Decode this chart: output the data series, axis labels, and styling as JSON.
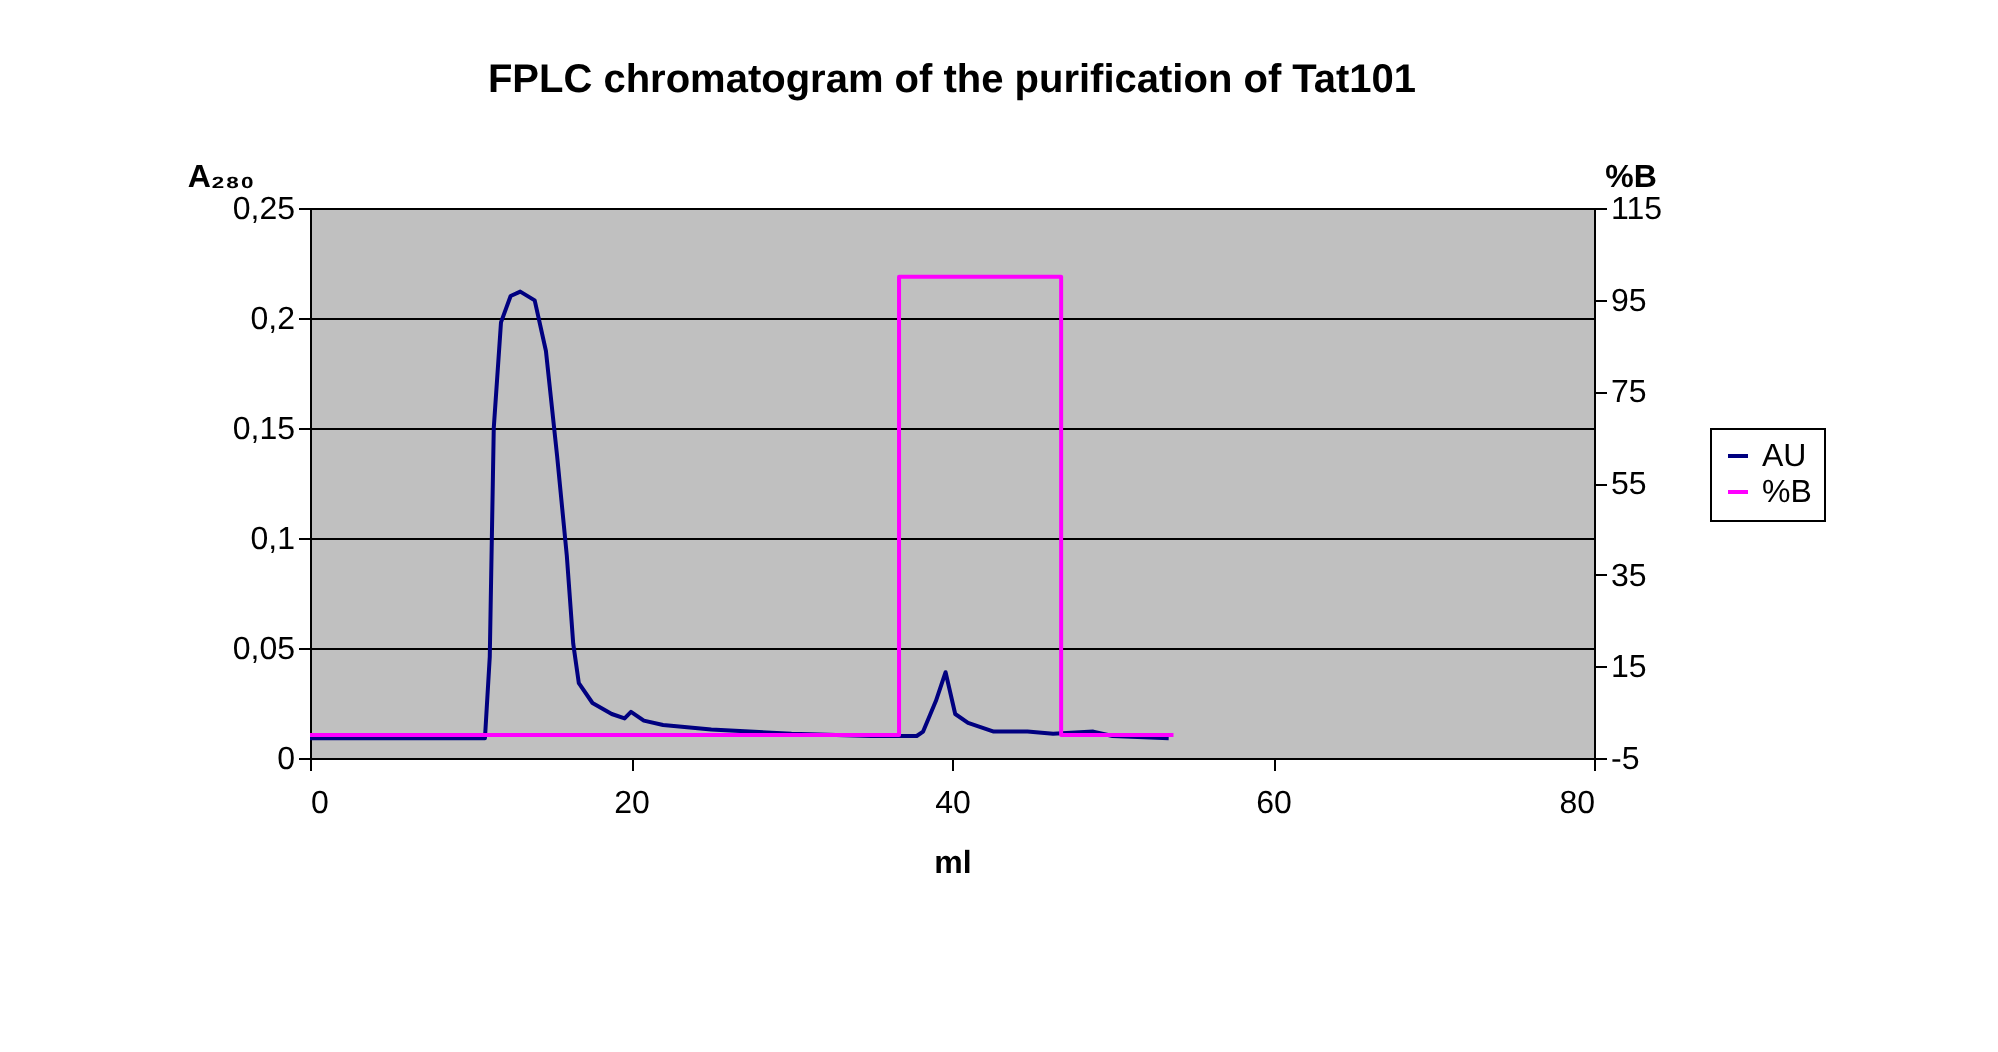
{
  "chart_data": {
    "type": "line",
    "title": "FPLC chromatogram of the purification of Tat101",
    "xlabel": "ml",
    "ylabel": "A₂₈₀",
    "y2label": "%B",
    "xlim": [
      0,
      80
    ],
    "xticks": [
      0,
      20,
      40,
      60,
      80
    ],
    "ylim": [
      0,
      0.25
    ],
    "yticks": [
      0,
      {
        "value": 0.05,
        "label": "0,05"
      },
      {
        "value": 0.1,
        "label": "0,1"
      },
      {
        "value": 0.15,
        "label": "0,15"
      },
      {
        "value": 0.2,
        "label": "0,2"
      },
      {
        "value": 0.25,
        "label": "0,25"
      }
    ],
    "y2lim": [
      -5,
      115
    ],
    "y2ticks": [
      -5,
      15,
      35,
      55,
      75,
      95,
      115
    ],
    "grid": "y",
    "legend": "right",
    "marker": "none",
    "line_style": "solid",
    "series": [
      {
        "name": "AU",
        "color": "#000080",
        "x": [
          0,
          10.9,
          11.2,
          11.45,
          11.9,
          12.5,
          13.1,
          14.0,
          14.7,
          15.4,
          16.0,
          16.4,
          16.75,
          17.6,
          18.8,
          19.6,
          20.0,
          20.8,
          22,
          25,
          30,
          35,
          37.8,
          38.2,
          39.0,
          39.6,
          40.2,
          41.0,
          42.6,
          44.7,
          46.3,
          48.8,
          50.0,
          53.5
        ],
        "values": [
          0.009,
          0.009,
          0.046,
          0.15,
          0.198,
          0.21,
          0.212,
          0.208,
          0.185,
          0.137,
          0.092,
          0.052,
          0.034,
          0.025,
          0.02,
          0.018,
          0.021,
          0.017,
          0.015,
          0.013,
          0.011,
          0.01,
          0.01,
          0.012,
          0.026,
          0.039,
          0.02,
          0.016,
          0.012,
          0.012,
          0.011,
          0.012,
          0.01,
          0.009
        ]
      },
      {
        "name": "%B",
        "color": "#ff00ff",
        "axis": "y2",
        "x": [
          0,
          36.7,
          36.7,
          46.8,
          46.8,
          53.8
        ],
        "values": [
          0,
          0,
          100,
          100,
          0,
          0
        ]
      }
    ]
  }
}
